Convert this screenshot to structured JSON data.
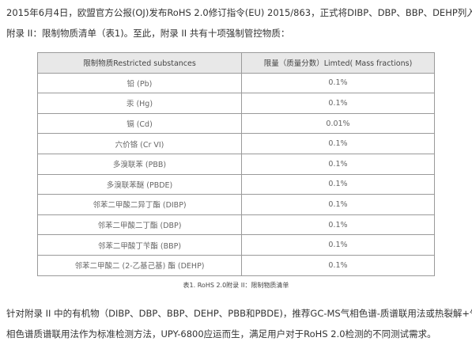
{
  "intro": {
    "line1": "2015年6月4日，欧盟官方公报(OJ)发布RoHS 2.0修订指令(EU) 2015/863，正式将DIBP、DBP、BBP、DEHP列入",
    "line2": "附录 II：限制物质清单（表1)。至此，附录 II 共有十项强制管控物质："
  },
  "table": {
    "headers": [
      "限制物质Restricted substances",
      "限量（质量分数）Limted( Mass fractions)"
    ],
    "rows": [
      [
        "铅 (Pb)",
        "0.1%"
      ],
      [
        "汞 (Hg)",
        "0.1%"
      ],
      [
        "镉 (Cd)",
        "0.01%"
      ],
      [
        "六价铬 (Cr VI)",
        "0.1%"
      ],
      [
        "多溴联苯 (PBB)",
        "0.1%"
      ],
      [
        "多溴联苯醚 (PBDE)",
        "0.1%"
      ],
      [
        "邻苯二甲酸二异丁酯 (DIBP)",
        "0.1%"
      ],
      [
        "邻苯二甲酸二丁酯 (DBP)",
        "0.1%"
      ],
      [
        "邻苯二甲酸丁苄酯 (BBP)",
        "0.1%"
      ],
      [
        "邻苯二甲酸二 (2-乙基己基) 酯 (DEHP)",
        "0.1%"
      ]
    ],
    "caption": "表1. RoHS 2.0附录 II：限制物质清单"
  },
  "outro": {
    "line1": "针对附录 II 中的有机物（DIBP、DBP、BBP、DEHP、PBB和PBDE)，推荐GC-MS气相色谱-质谱联用法或热裂解+气",
    "line2": "相色谱质谱联用法作为标准检测方法，UPY-6800应运而生，满足用户对于RoHS 2.0检测的不同测试需求。"
  }
}
